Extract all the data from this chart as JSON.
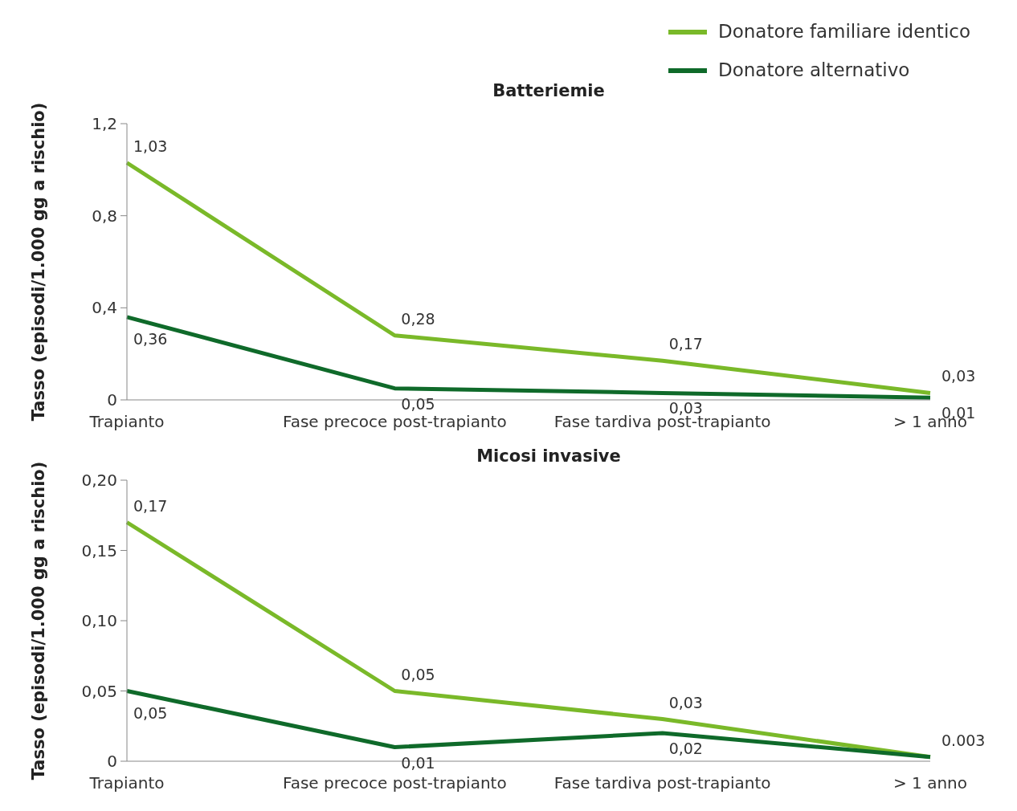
{
  "chart_data": [
    {
      "type": "line",
      "title": "Batteriemie",
      "ylabel": "Tasso (episodi/1.000 gg a rischio)",
      "categories": [
        "Trapianto",
        "Fase precoce post-trapianto",
        "Fase tardiva post-trapianto",
        "> 1 anno"
      ],
      "series": [
        {
          "name": "Donatore familiare identico",
          "color": "#7ab929",
          "values": [
            1.03,
            0.28,
            0.17,
            0.03
          ],
          "value_labels": [
            "1,03",
            "0,28",
            "0,17",
            "0,03"
          ]
        },
        {
          "name": "Donatore alternativo",
          "color": "#0f6a2a",
          "values": [
            0.36,
            0.05,
            0.03,
            0.01
          ],
          "value_labels": [
            "0,36",
            "0,05",
            "0,03",
            "0,01"
          ]
        }
      ],
      "ylim": [
        0,
        1.2
      ],
      "yticks": [
        0,
        {
          "value": 0.4,
          "label": "0,4"
        },
        {
          "value": 0.8,
          "label": "0,8"
        },
        {
          "value": 1.2,
          "label": "1,2"
        }
      ],
      "grid": false,
      "legend": "top right",
      "marker": "none",
      "line_style": "solid"
    },
    {
      "type": "line",
      "title": "Micosi invasive",
      "ylabel": "Tasso (episodi/1.000 gg a rischio)",
      "categories": [
        "Trapianto",
        "Fase precoce post-trapianto",
        "Fase tardiva post-trapianto",
        "> 1 anno"
      ],
      "series": [
        {
          "color": "#7ab929",
          "values": [
            0.17,
            0.05,
            0.03,
            0.003
          ],
          "value_labels": [
            "0,17",
            "0,05",
            "0,03",
            "0.003"
          ]
        },
        {
          "color": "#0f6a2a",
          "values": [
            0.05,
            0.01,
            0.02,
            0.003
          ],
          "value_labels": [
            "0,05",
            "0,01",
            "0,02",
            null
          ]
        }
      ],
      "ylim": [
        0,
        0.2
      ],
      "yticks": [
        0,
        {
          "value": 0.05,
          "label": "0,05"
        },
        {
          "value": 0.1,
          "label": "0,10"
        },
        {
          "value": 0.15,
          "label": "0,15"
        },
        {
          "value": 0.2,
          "label": "0,20"
        }
      ],
      "grid": false,
      "legend": false,
      "marker": "none",
      "line_style": "solid"
    }
  ]
}
